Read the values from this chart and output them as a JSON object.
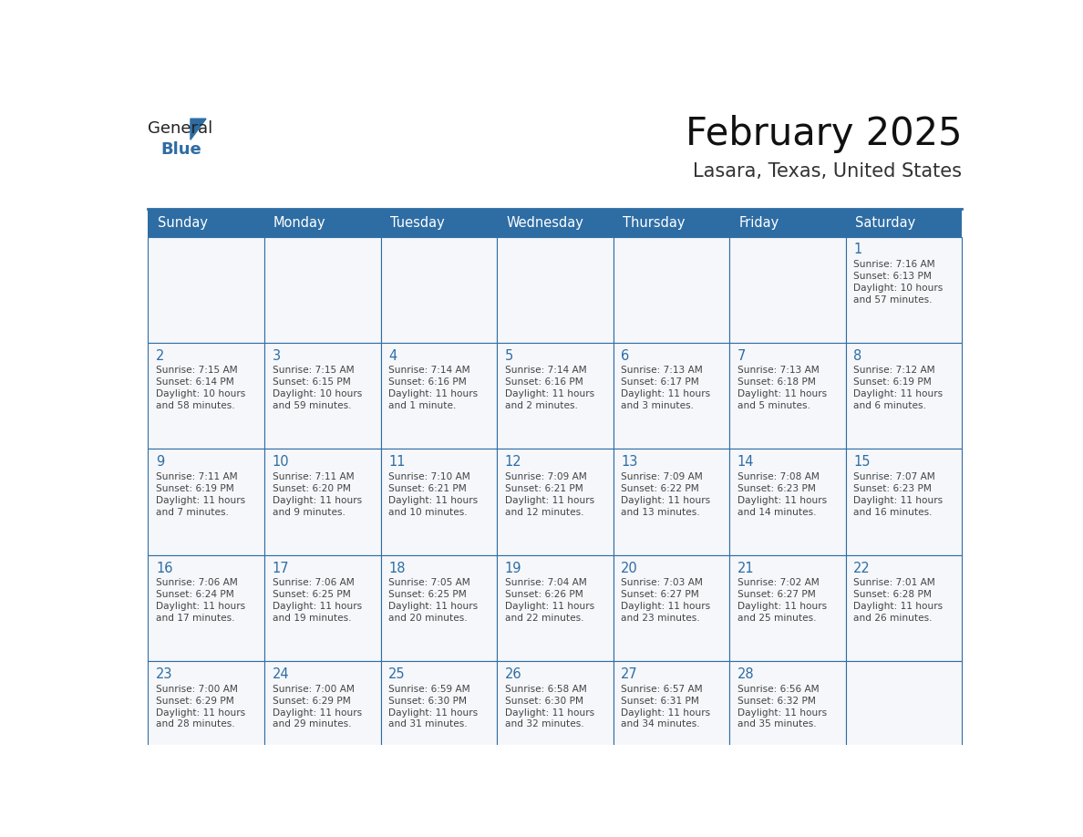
{
  "title": "February 2025",
  "subtitle": "Lasara, Texas, United States",
  "days_of_week": [
    "Sunday",
    "Monday",
    "Tuesday",
    "Wednesday",
    "Thursday",
    "Friday",
    "Saturday"
  ],
  "header_bg_color": "#2E6DA4",
  "header_text_color": "#FFFFFF",
  "cell_bg_color": "#F5F7FA",
  "cell_border_color": "#2E6DA4",
  "day_number_color": "#2E6DA4",
  "text_color": "#444444",
  "background_color": "#FFFFFF",
  "logo_general_color": "#222222",
  "logo_blue_color": "#2E6DA4",
  "logo_triangle_color": "#2E6DA4",
  "calendar_data": {
    "1": {
      "sunrise": "7:16 AM",
      "sunset": "6:13 PM",
      "daylight_line1": "Daylight: 10 hours",
      "daylight_line2": "and 57 minutes."
    },
    "2": {
      "sunrise": "7:15 AM",
      "sunset": "6:14 PM",
      "daylight_line1": "Daylight: 10 hours",
      "daylight_line2": "and 58 minutes."
    },
    "3": {
      "sunrise": "7:15 AM",
      "sunset": "6:15 PM",
      "daylight_line1": "Daylight: 10 hours",
      "daylight_line2": "and 59 minutes."
    },
    "4": {
      "sunrise": "7:14 AM",
      "sunset": "6:16 PM",
      "daylight_line1": "Daylight: 11 hours",
      "daylight_line2": "and 1 minute."
    },
    "5": {
      "sunrise": "7:14 AM",
      "sunset": "6:16 PM",
      "daylight_line1": "Daylight: 11 hours",
      "daylight_line2": "and 2 minutes."
    },
    "6": {
      "sunrise": "7:13 AM",
      "sunset": "6:17 PM",
      "daylight_line1": "Daylight: 11 hours",
      "daylight_line2": "and 3 minutes."
    },
    "7": {
      "sunrise": "7:13 AM",
      "sunset": "6:18 PM",
      "daylight_line1": "Daylight: 11 hours",
      "daylight_line2": "and 5 minutes."
    },
    "8": {
      "sunrise": "7:12 AM",
      "sunset": "6:19 PM",
      "daylight_line1": "Daylight: 11 hours",
      "daylight_line2": "and 6 minutes."
    },
    "9": {
      "sunrise": "7:11 AM",
      "sunset": "6:19 PM",
      "daylight_line1": "Daylight: 11 hours",
      "daylight_line2": "and 7 minutes."
    },
    "10": {
      "sunrise": "7:11 AM",
      "sunset": "6:20 PM",
      "daylight_line1": "Daylight: 11 hours",
      "daylight_line2": "and 9 minutes."
    },
    "11": {
      "sunrise": "7:10 AM",
      "sunset": "6:21 PM",
      "daylight_line1": "Daylight: 11 hours",
      "daylight_line2": "and 10 minutes."
    },
    "12": {
      "sunrise": "7:09 AM",
      "sunset": "6:21 PM",
      "daylight_line1": "Daylight: 11 hours",
      "daylight_line2": "and 12 minutes."
    },
    "13": {
      "sunrise": "7:09 AM",
      "sunset": "6:22 PM",
      "daylight_line1": "Daylight: 11 hours",
      "daylight_line2": "and 13 minutes."
    },
    "14": {
      "sunrise": "7:08 AM",
      "sunset": "6:23 PM",
      "daylight_line1": "Daylight: 11 hours",
      "daylight_line2": "and 14 minutes."
    },
    "15": {
      "sunrise": "7:07 AM",
      "sunset": "6:23 PM",
      "daylight_line1": "Daylight: 11 hours",
      "daylight_line2": "and 16 minutes."
    },
    "16": {
      "sunrise": "7:06 AM",
      "sunset": "6:24 PM",
      "daylight_line1": "Daylight: 11 hours",
      "daylight_line2": "and 17 minutes."
    },
    "17": {
      "sunrise": "7:06 AM",
      "sunset": "6:25 PM",
      "daylight_line1": "Daylight: 11 hours",
      "daylight_line2": "and 19 minutes."
    },
    "18": {
      "sunrise": "7:05 AM",
      "sunset": "6:25 PM",
      "daylight_line1": "Daylight: 11 hours",
      "daylight_line2": "and 20 minutes."
    },
    "19": {
      "sunrise": "7:04 AM",
      "sunset": "6:26 PM",
      "daylight_line1": "Daylight: 11 hours",
      "daylight_line2": "and 22 minutes."
    },
    "20": {
      "sunrise": "7:03 AM",
      "sunset": "6:27 PM",
      "daylight_line1": "Daylight: 11 hours",
      "daylight_line2": "and 23 minutes."
    },
    "21": {
      "sunrise": "7:02 AM",
      "sunset": "6:27 PM",
      "daylight_line1": "Daylight: 11 hours",
      "daylight_line2": "and 25 minutes."
    },
    "22": {
      "sunrise": "7:01 AM",
      "sunset": "6:28 PM",
      "daylight_line1": "Daylight: 11 hours",
      "daylight_line2": "and 26 minutes."
    },
    "23": {
      "sunrise": "7:00 AM",
      "sunset": "6:29 PM",
      "daylight_line1": "Daylight: 11 hours",
      "daylight_line2": "and 28 minutes."
    },
    "24": {
      "sunrise": "7:00 AM",
      "sunset": "6:29 PM",
      "daylight_line1": "Daylight: 11 hours",
      "daylight_line2": "and 29 minutes."
    },
    "25": {
      "sunrise": "6:59 AM",
      "sunset": "6:30 PM",
      "daylight_line1": "Daylight: 11 hours",
      "daylight_line2": "and 31 minutes."
    },
    "26": {
      "sunrise": "6:58 AM",
      "sunset": "6:30 PM",
      "daylight_line1": "Daylight: 11 hours",
      "daylight_line2": "and 32 minutes."
    },
    "27": {
      "sunrise": "6:57 AM",
      "sunset": "6:31 PM",
      "daylight_line1": "Daylight: 11 hours",
      "daylight_line2": "and 34 minutes."
    },
    "28": {
      "sunrise": "6:56 AM",
      "sunset": "6:32 PM",
      "daylight_line1": "Daylight: 11 hours",
      "daylight_line2": "and 35 minutes."
    }
  },
  "week_layout": [
    [
      null,
      null,
      null,
      null,
      null,
      null,
      1
    ],
    [
      2,
      3,
      4,
      5,
      6,
      7,
      8
    ],
    [
      9,
      10,
      11,
      12,
      13,
      14,
      15
    ],
    [
      16,
      17,
      18,
      19,
      20,
      21,
      22
    ],
    [
      23,
      24,
      25,
      26,
      27,
      28,
      null
    ]
  ]
}
